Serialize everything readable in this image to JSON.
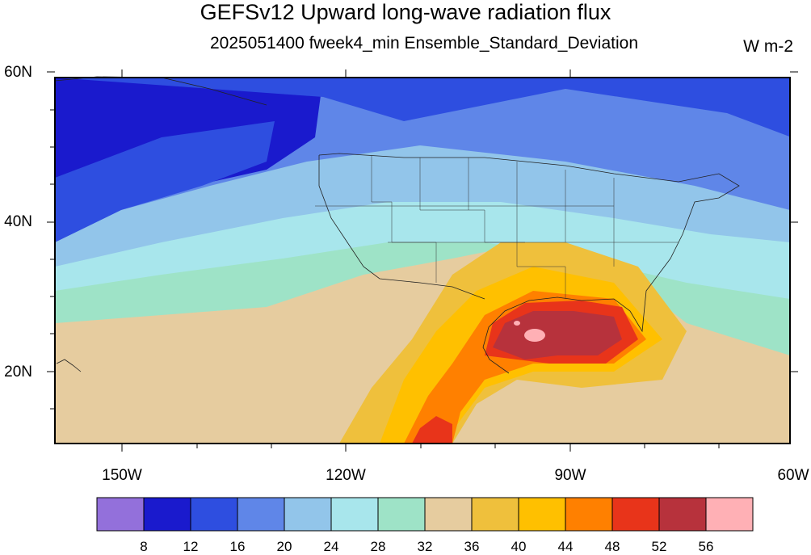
{
  "title": "GEFSv12 Upward long-wave radiation flux",
  "subtitle": "2025051400 fweek4_min Ensemble_Standard_Deviation",
  "units": "W m-2",
  "lat_labels": [
    "60N",
    "40N",
    "20N"
  ],
  "lon_labels": [
    "150W",
    "120W",
    "90W",
    "60W"
  ],
  "colorbar": {
    "labels": [
      "8",
      "12",
      "16",
      "20",
      "24",
      "28",
      "32",
      "36",
      "40",
      "44",
      "48",
      "52",
      "56"
    ],
    "colors": [
      "#9370db",
      "#1a1acd",
      "#2e4ee0",
      "#5f86e8",
      "#92c5ea",
      "#a8e6ec",
      "#9ee3c7",
      "#e6cc9f",
      "#efc03c",
      "#ffc000",
      "#ff8000",
      "#e8341a",
      "#b7323c",
      "#ffb0b5"
    ]
  }
}
